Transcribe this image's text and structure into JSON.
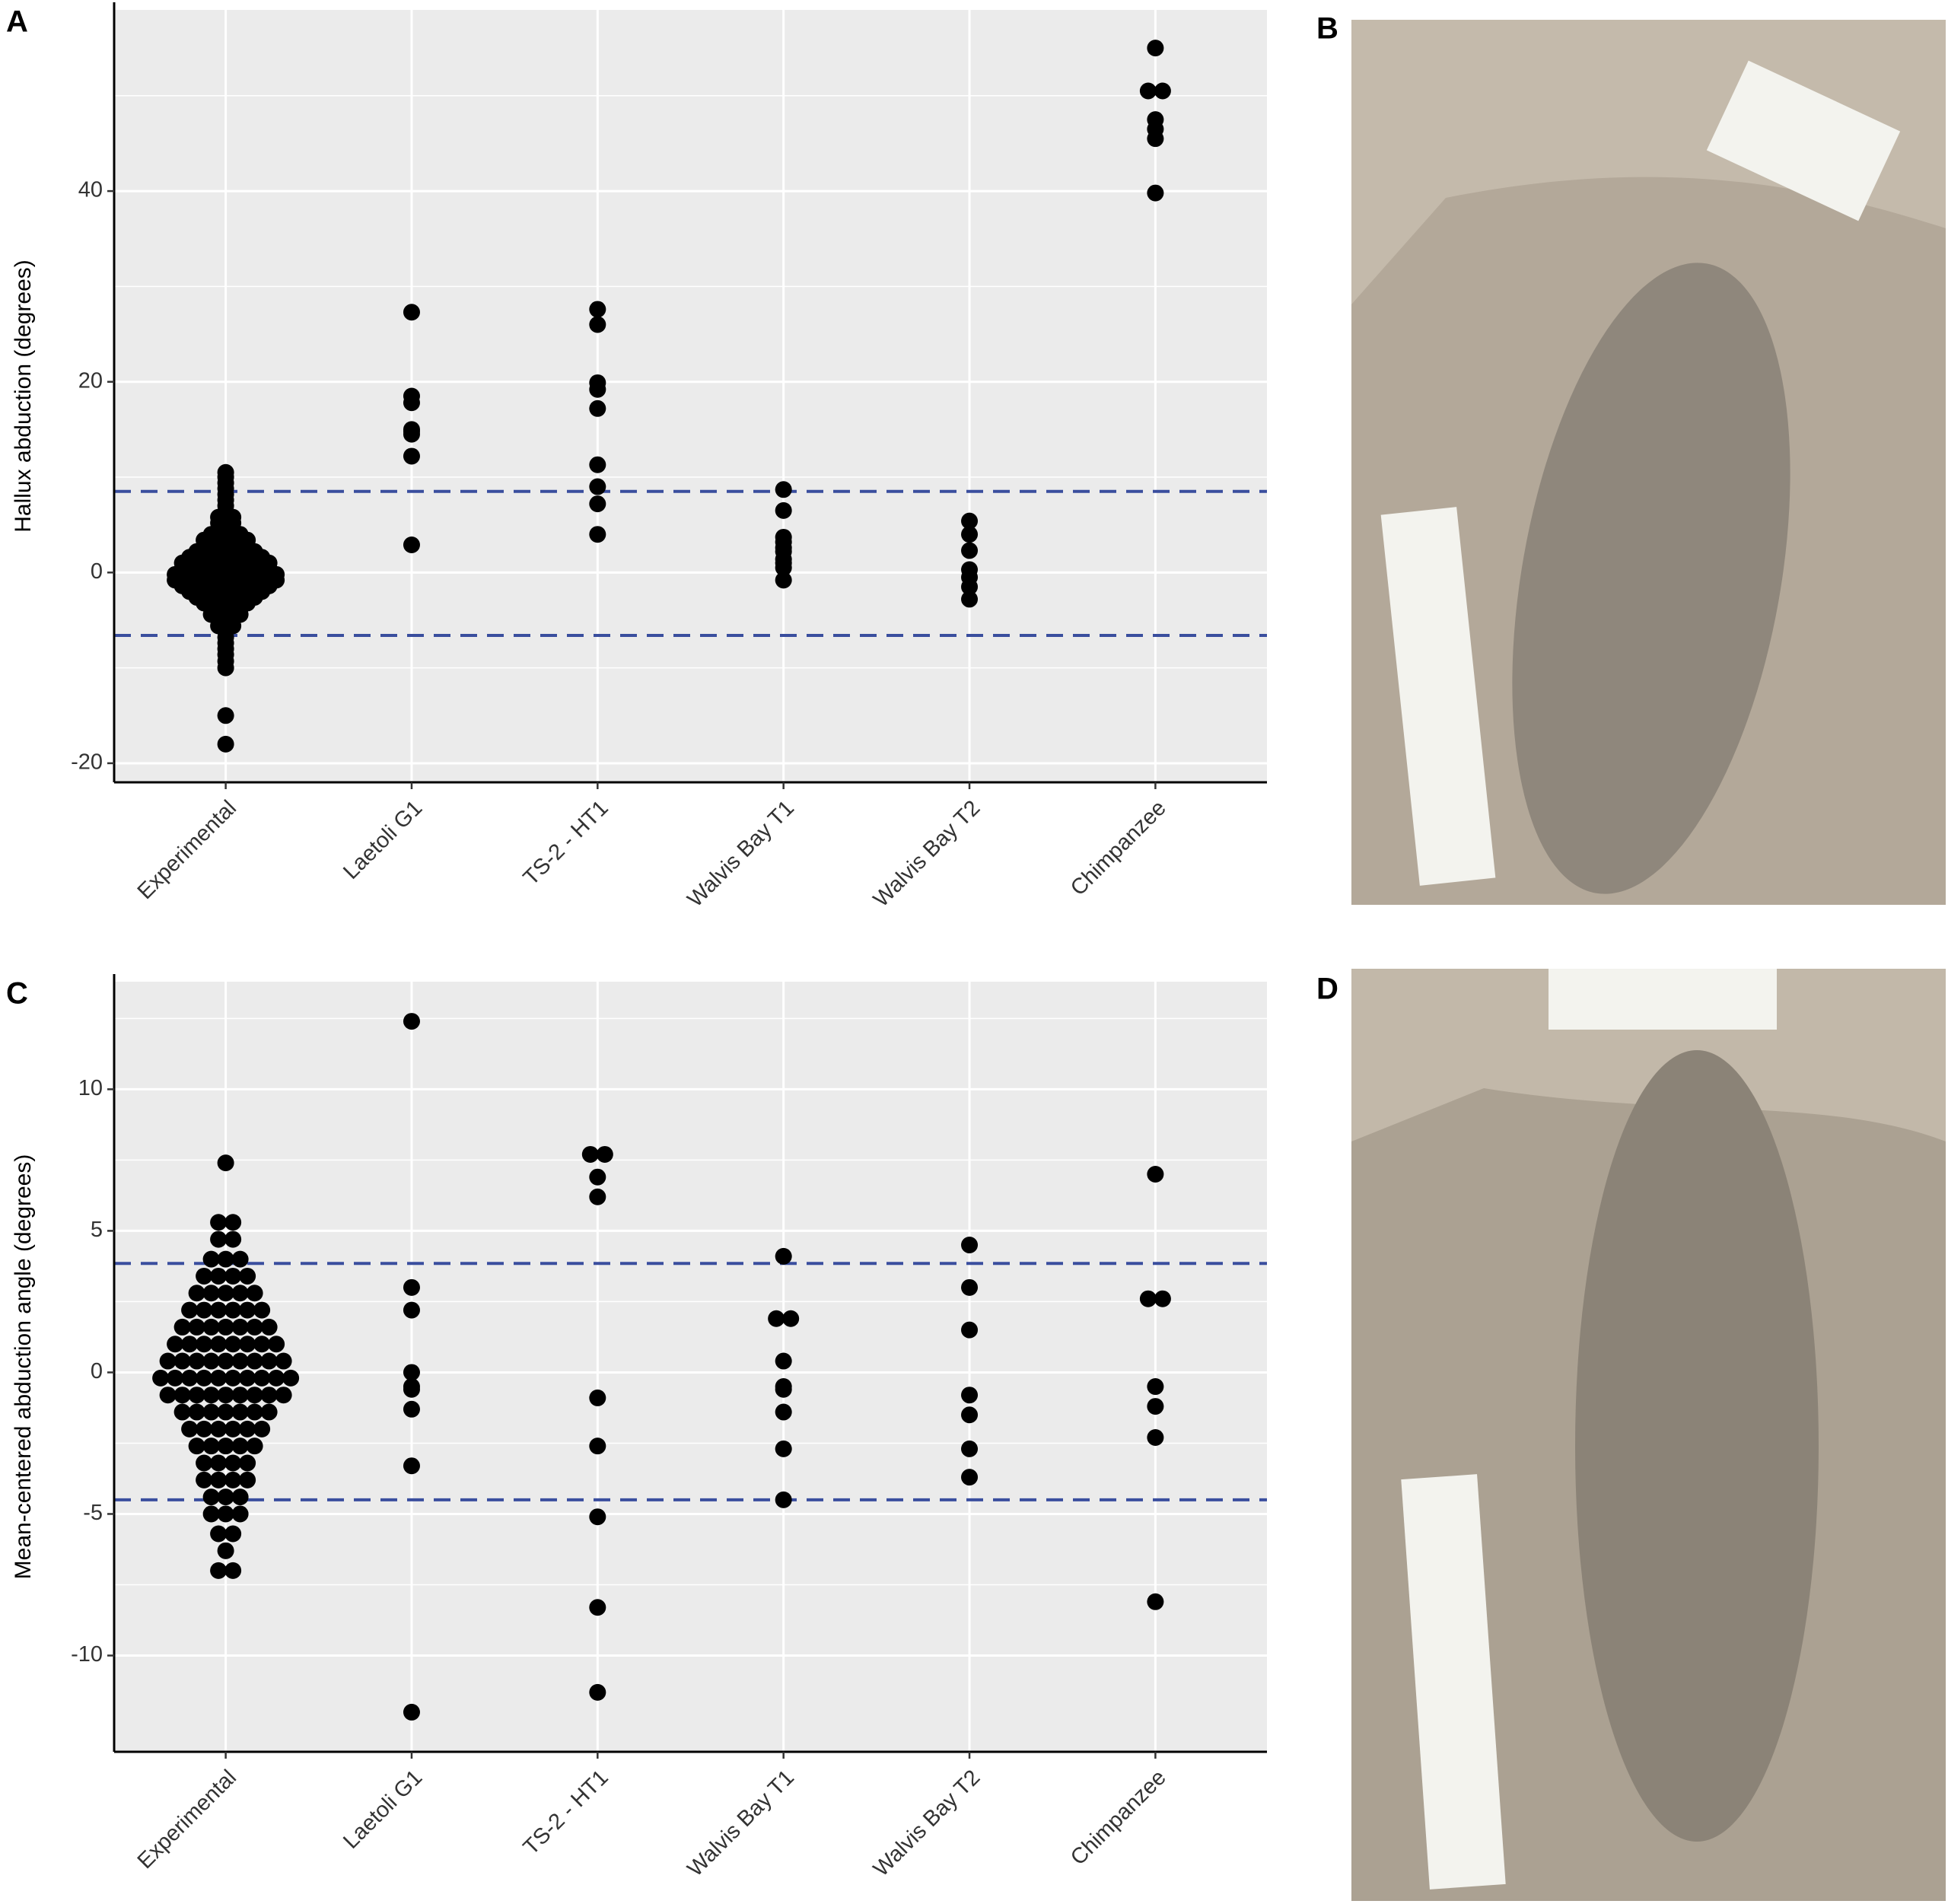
{
  "chart_data": [
    {
      "type": "dotplot",
      "panel": "A",
      "ylabel": "Hallux abduction (degrees)",
      "categories": [
        "Experimental",
        "Laetoli G1",
        "TS-2 - HT1",
        "Walvis Bay T1",
        "Walvis Bay T2",
        "Chimpanzee"
      ],
      "values": [
        [
          -18,
          -15,
          -10,
          -9.3,
          -8.6,
          -8,
          -7.4,
          -6.8,
          -6.2,
          -5.6,
          -5.6,
          -5,
          -5,
          -4.4,
          -4.4,
          -4.4,
          -3.8,
          -3.8,
          -3.8,
          -3.2,
          -3.2,
          -3.2,
          -3.2,
          -2.6,
          -2.6,
          -2.6,
          -2.6,
          -2.6,
          -2,
          -2,
          -2,
          -2,
          -2,
          -2,
          -1.4,
          -1.4,
          -1.4,
          -1.4,
          -1.4,
          -1.4,
          -1.4,
          -0.8,
          -0.8,
          -0.8,
          -0.8,
          -0.8,
          -0.8,
          -0.8,
          -0.8,
          -0.2,
          -0.2,
          -0.2,
          -0.2,
          -0.2,
          -0.2,
          -0.2,
          -0.2,
          0.4,
          0.4,
          0.4,
          0.4,
          0.4,
          0.4,
          0.4,
          1,
          1,
          1,
          1,
          1,
          1,
          1,
          1.6,
          1.6,
          1.6,
          1.6,
          1.6,
          1.6,
          2.2,
          2.2,
          2.2,
          2.2,
          2.2,
          2.8,
          2.8,
          2.8,
          2.8,
          3.4,
          3.4,
          3.4,
          3.4,
          4,
          4,
          4,
          4.6,
          4.6,
          5.2,
          5.2,
          5.8,
          5.8,
          6.4,
          7,
          7.6,
          8.2,
          8.8,
          9.4,
          10,
          10.5
        ],
        [
          27.3,
          18.5,
          17.8,
          15,
          14.8,
          14.5,
          12.2,
          2.9
        ],
        [
          27.6,
          26,
          19.9,
          19.2,
          17.2,
          11.3,
          9,
          7.2,
          4
        ],
        [
          8.7,
          6.5,
          3.7,
          3.2,
          2.6,
          2.2,
          1.4,
          1,
          0.5,
          -0.8
        ],
        [
          5.4,
          4,
          2.3,
          0.3,
          -0.5,
          -1.5,
          -2.8
        ],
        [
          55,
          50.5,
          50.5,
          47.5,
          46.5,
          45.5,
          39.8
        ]
      ],
      "point_color": "#000000",
      "ylim": [
        -22,
        59
      ],
      "yticks": [
        -20,
        0,
        20,
        40
      ],
      "minor_yticks": [
        -10,
        10,
        30,
        50
      ],
      "reference_lines": [
        8.5,
        -6.6
      ],
      "reference_line_color": "#3a4e9e",
      "grid": true
    },
    {
      "type": "dotplot",
      "panel": "C",
      "ylabel": "Mean-centered abduction angle (degrees)",
      "categories": [
        "Experimental",
        "Laetoli G1",
        "TS-2 - HT1",
        "Walvis Bay T1",
        "Walvis Bay T2",
        "Chimpanzee"
      ],
      "values": [
        [
          -7,
          -7,
          -6.3,
          -5.7,
          -5.7,
          -5,
          -5,
          -5,
          -4.4,
          -4.4,
          -4.4,
          -3.8,
          -3.8,
          -3.8,
          -3.8,
          -3.2,
          -3.2,
          -3.2,
          -3.2,
          -2.6,
          -2.6,
          -2.6,
          -2.6,
          -2.6,
          -2,
          -2,
          -2,
          -2,
          -2,
          -2,
          -1.4,
          -1.4,
          -1.4,
          -1.4,
          -1.4,
          -1.4,
          -1.4,
          -0.8,
          -0.8,
          -0.8,
          -0.8,
          -0.8,
          -0.8,
          -0.8,
          -0.8,
          -0.8,
          -0.2,
          -0.2,
          -0.2,
          -0.2,
          -0.2,
          -0.2,
          -0.2,
          -0.2,
          -0.2,
          -0.2,
          0.4,
          0.4,
          0.4,
          0.4,
          0.4,
          0.4,
          0.4,
          0.4,
          0.4,
          1,
          1,
          1,
          1,
          1,
          1,
          1,
          1,
          1.6,
          1.6,
          1.6,
          1.6,
          1.6,
          1.6,
          1.6,
          2.2,
          2.2,
          2.2,
          2.2,
          2.2,
          2.2,
          2.8,
          2.8,
          2.8,
          2.8,
          2.8,
          3.4,
          3.4,
          3.4,
          3.4,
          4,
          4,
          4,
          4.7,
          4.7,
          5.3,
          5.3,
          7.4
        ],
        [
          12.4,
          3,
          2.2,
          0,
          -0.5,
          -0.6,
          -1.3,
          -3.3,
          -12
        ],
        [
          7.7,
          7.7,
          6.9,
          6.2,
          -0.9,
          -2.6,
          -5.1,
          -8.3,
          -11.3
        ],
        [
          4.1,
          1.9,
          1.9,
          0.4,
          -0.5,
          -0.6,
          -1.4,
          -2.7,
          -4.5
        ],
        [
          4.5,
          3,
          1.5,
          -0.8,
          -1.5,
          -2.7,
          -3.7
        ],
        [
          7,
          2.6,
          2.6,
          -0.5,
          -1.2,
          -2.3,
          -8.1
        ]
      ],
      "point_color": "#000000",
      "ylim": [
        -13.4,
        13.8
      ],
      "yticks": [
        -10,
        -5,
        0,
        5,
        10
      ],
      "minor_yticks": [
        -7.5,
        -2.5,
        2.5,
        7.5,
        12.5
      ],
      "reference_lines": [
        3.85,
        -4.5
      ],
      "reference_line_color": "#3a4e9e",
      "grid": true
    }
  ],
  "photos": [
    {
      "panel": "B"
    },
    {
      "panel": "D"
    }
  ]
}
